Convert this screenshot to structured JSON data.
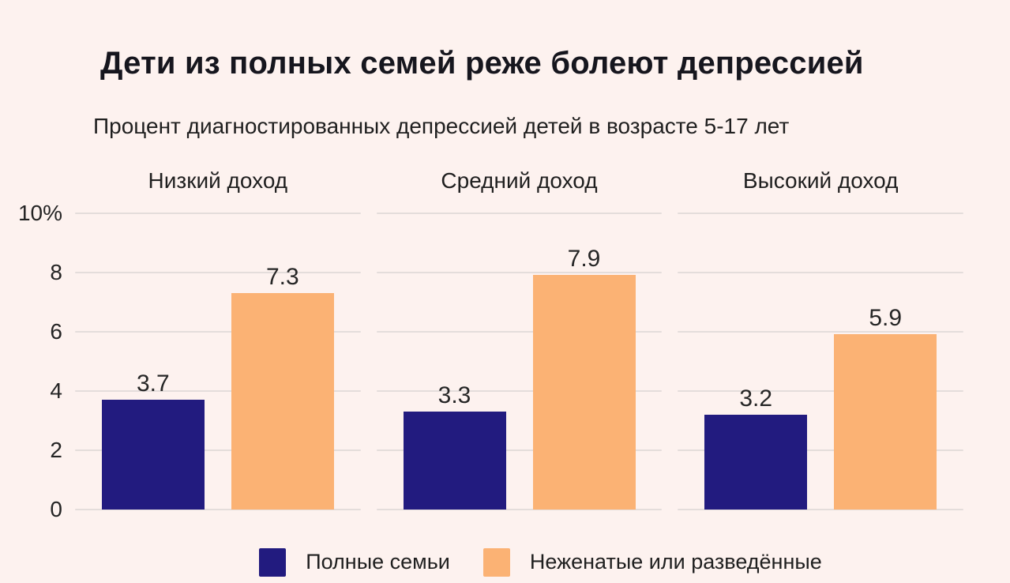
{
  "page": {
    "background": "#fdf2ef"
  },
  "colors": {
    "complete_families": "#221b7f",
    "unmarried_divorced": "#fbb274",
    "gridline": "#e4dddb",
    "title_text": "#16161e",
    "body_text": "#1f1f1f"
  },
  "chart_data": {
    "type": "bar",
    "title": "Дети из полных семей реже болеют депрессией",
    "subtitle": "Процент диагностированных депрессией детей в возрасте 5-17 лет",
    "categories": [
      "Низкий доход",
      "Средний доход",
      "Высокий доход"
    ],
    "series": [
      {
        "name": "Полные семьи",
        "color": "#221b7f",
        "values": [
          3.7,
          3.3,
          3.2
        ]
      },
      {
        "name": "Неженатые или разведённые",
        "color": "#fbb274",
        "values": [
          7.3,
          7.9,
          5.9
        ]
      }
    ],
    "value_labels": [
      "3.7",
      "7.3",
      "3.3",
      "7.9",
      "3.2",
      "5.9"
    ],
    "xlabel": "",
    "ylabel": "",
    "unit": "%",
    "ylim": [
      0,
      10
    ],
    "yticks": [
      {
        "value": 10,
        "label": "10%"
      },
      {
        "value": 8,
        "label": "8"
      },
      {
        "value": 6,
        "label": "6"
      },
      {
        "value": 4,
        "label": "4"
      },
      {
        "value": 2,
        "label": "2"
      },
      {
        "value": 0,
        "label": "0"
      }
    ],
    "grid": true,
    "legend_position": "bottom"
  },
  "legend": {
    "items": [
      {
        "label": "Полные семьи",
        "color": "#221b7f"
      },
      {
        "label": "Неженатые или разведённые",
        "color": "#fbb274"
      }
    ]
  }
}
